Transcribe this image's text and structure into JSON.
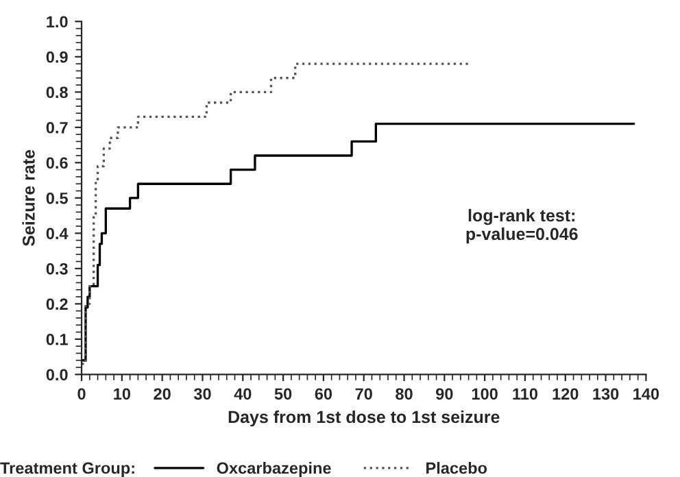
{
  "chart_data": {
    "type": "step",
    "xlabel": "Days from 1st dose to 1st seizure",
    "ylabel": "Seizure rate",
    "legend_title": "Treatment Group:",
    "legend": "bottom",
    "grid": false,
    "marker": "none",
    "xlim": [
      0,
      140
    ],
    "xticks": [
      0,
      10,
      20,
      30,
      40,
      50,
      60,
      70,
      80,
      90,
      100,
      110,
      120,
      130,
      140
    ],
    "ylim": [
      0,
      1.0
    ],
    "yticks": [
      {
        "value": 0,
        "label": "0.0"
      },
      {
        "value": 0.1,
        "label": "0.1"
      },
      {
        "value": 0.2,
        "label": "0.2"
      },
      {
        "value": 0.3,
        "label": "0.3"
      },
      {
        "value": 0.4,
        "label": "0.4"
      },
      {
        "value": 0.5,
        "label": "0.5"
      },
      {
        "value": 0.6,
        "label": "0.6"
      },
      {
        "value": 0.7,
        "label": "0.7"
      },
      {
        "value": 0.8,
        "label": "0.8"
      },
      {
        "value": 0.9,
        "label": "0.9"
      },
      {
        "value": 1.0,
        "label": "1.0"
      }
    ],
    "series": [
      {
        "name": "Oxcarbazepine",
        "color": "#000000",
        "line_style": "solid",
        "x": [
          0,
          1,
          1.5,
          2,
          4,
          4.5,
          5,
          6,
          12,
          14,
          37,
          43,
          67,
          73,
          137
        ],
        "values": [
          0.04,
          0.19,
          0.22,
          0.25,
          0.31,
          0.37,
          0.4,
          0.47,
          0.5,
          0.54,
          0.58,
          0.62,
          0.66,
          0.71,
          0.71
        ]
      },
      {
        "name": "Placebo",
        "color": "#555555",
        "line_style": "dotted",
        "x": [
          0,
          1,
          2,
          3,
          3.5,
          4,
          5.5,
          7,
          9,
          14,
          31,
          37,
          47,
          53,
          96
        ],
        "values": [
          0.03,
          0.2,
          0.25,
          0.45,
          0.55,
          0.59,
          0.64,
          0.67,
          0.7,
          0.73,
          0.77,
          0.8,
          0.84,
          0.88,
          0.88
        ]
      }
    ],
    "annotations": [
      "log-rank test:\np-value=0.046"
    ]
  }
}
